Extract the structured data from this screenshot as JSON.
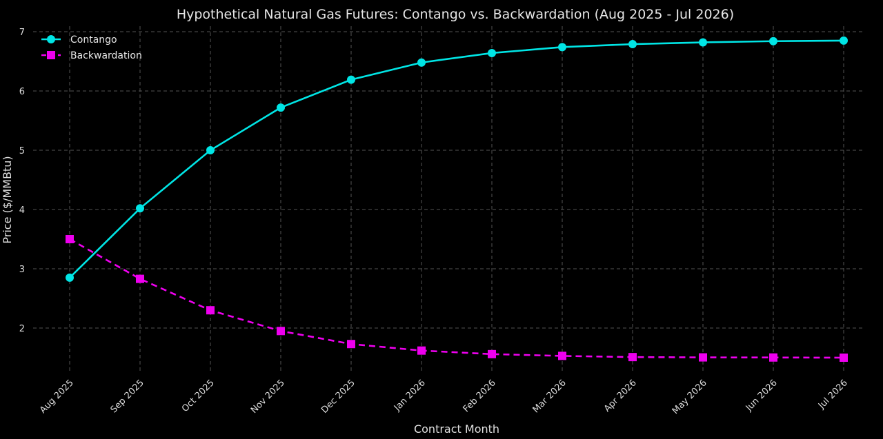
{
  "chart_data": {
    "type": "line",
    "title": "Hypothetical Natural Gas Futures: Contango vs. Backwardation (Aug 2025 - Jul 2026)",
    "xlabel": "Contract Month",
    "ylabel": "Price ($/MMBtu)",
    "categories": [
      "Aug 2025",
      "Sep 2025",
      "Oct 2025",
      "Nov 2025",
      "Dec 2025",
      "Jan 2026",
      "Feb 2026",
      "Mar 2026",
      "Apr 2026",
      "May 2026",
      "Jun 2026",
      "Jul 2026"
    ],
    "yticks": [
      2,
      3,
      4,
      5,
      6,
      7
    ],
    "ylim": [
      1.3,
      7.1
    ],
    "grid": true,
    "legend_position": "top-left",
    "series": [
      {
        "name": "Contango",
        "color": "#00e5e5",
        "marker": "circle",
        "line_style": "solid",
        "values": [
          2.85,
          4.02,
          5.0,
          5.72,
          6.19,
          6.48,
          6.64,
          6.74,
          6.79,
          6.82,
          6.84,
          6.85
        ]
      },
      {
        "name": "Backwardation",
        "color": "#ee00ee",
        "marker": "square",
        "line_style": "dashed",
        "values": [
          3.5,
          2.83,
          2.3,
          1.95,
          1.73,
          1.62,
          1.56,
          1.53,
          1.51,
          1.505,
          1.503,
          1.5
        ]
      }
    ]
  }
}
